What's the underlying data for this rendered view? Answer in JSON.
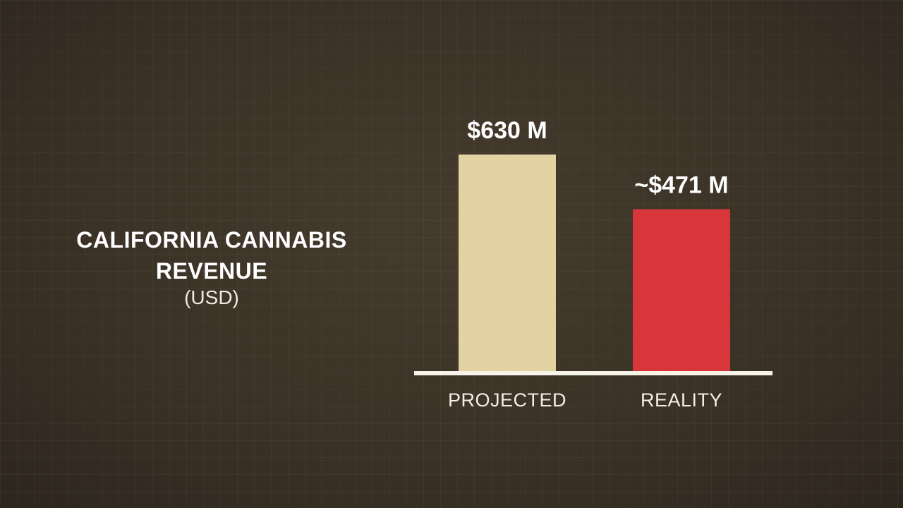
{
  "chart_data": {
    "type": "bar",
    "title": "CALIFORNIA CANNABIS REVENUE",
    "subtitle": "(USD)",
    "categories": [
      "PROJECTED",
      "REALITY"
    ],
    "values": [
      630,
      471
    ],
    "value_labels": [
      "$630 M",
      "~$471 M"
    ],
    "colors": [
      "#e3d3a2",
      "#d8363b"
    ]
  }
}
